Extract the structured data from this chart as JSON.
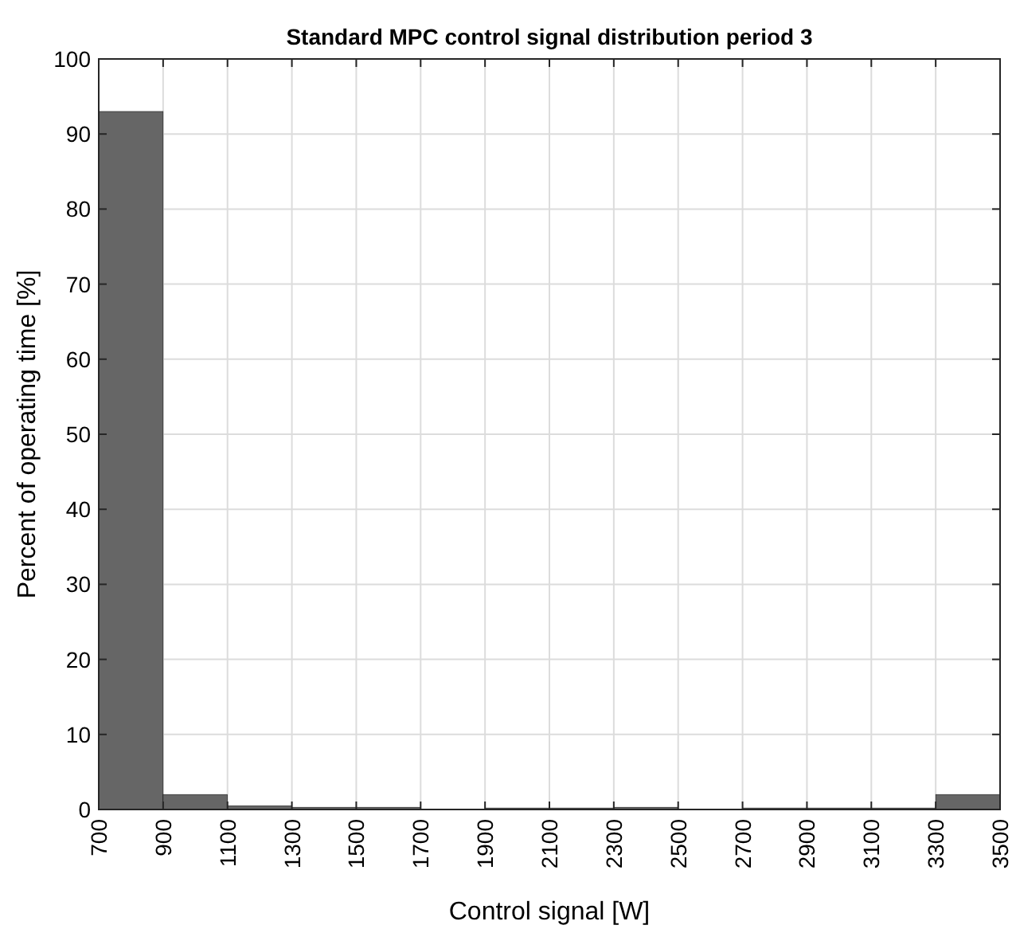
{
  "chart_data": {
    "type": "histogram",
    "title": "Standard MPC control signal distribution period 3",
    "xlabel": "Control signal [W]",
    "ylabel": "Percent of operating time [%]",
    "bins": [
      700,
      900,
      1100,
      1300,
      1500,
      1700,
      1900,
      2100,
      2300,
      2500,
      2700,
      2900,
      3100,
      3300,
      3500
    ],
    "values": [
      93,
      2,
      0.5,
      0.3,
      0.3,
      0,
      0.2,
      0.2,
      0.3,
      0,
      0.2,
      0.2,
      0.2,
      2
    ],
    "color": "#666666",
    "xlim": [
      700,
      3500
    ],
    "xticks": [
      700,
      900,
      1100,
      1300,
      1500,
      1700,
      1900,
      2100,
      2300,
      2500,
      2700,
      2900,
      3100,
      3300,
      3500
    ],
    "ylim": [
      0,
      100
    ],
    "yticks": [
      0,
      10,
      20,
      30,
      40,
      50,
      60,
      70,
      80,
      90,
      100
    ],
    "grid": true
  }
}
